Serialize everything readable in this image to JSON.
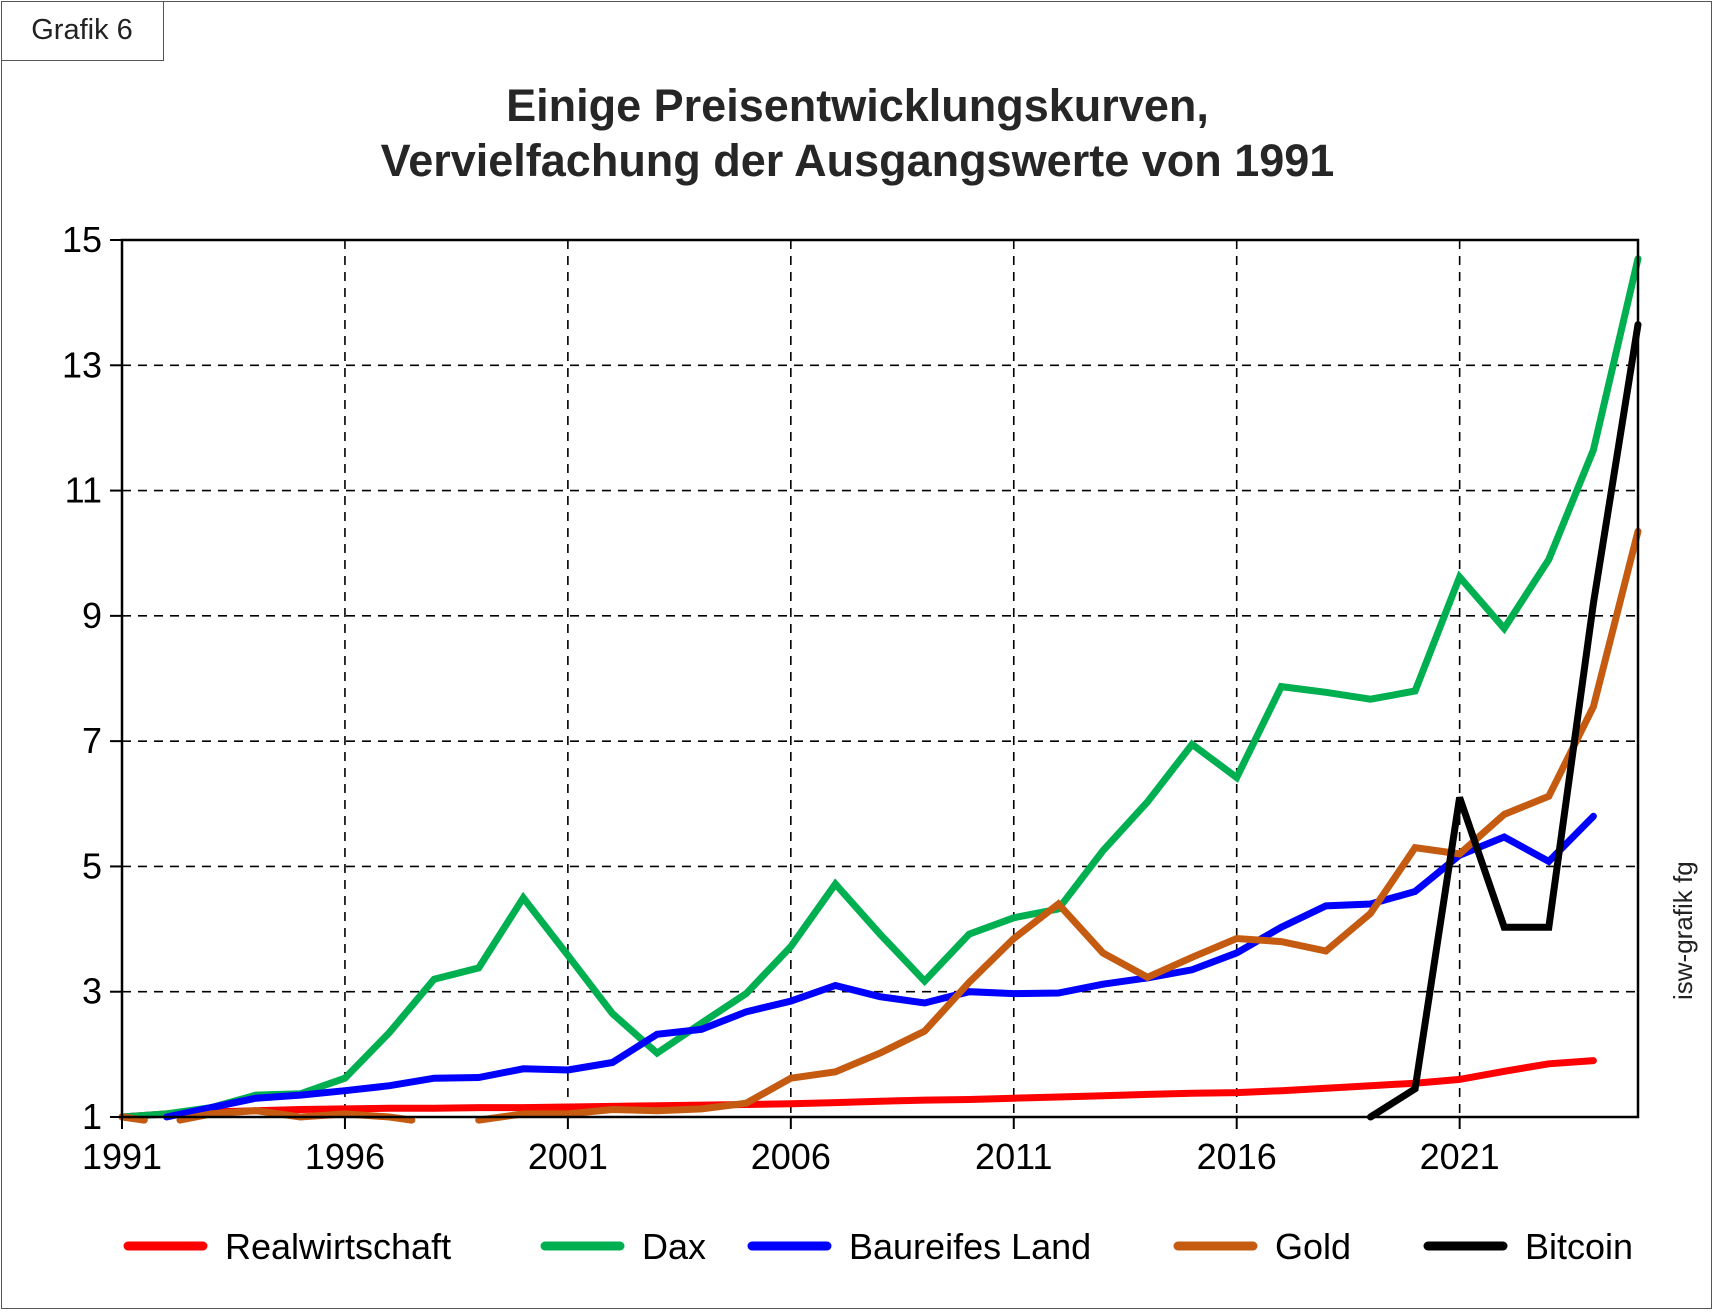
{
  "badge": "Grafik 6",
  "watermark": "isw-grafik fg",
  "chart_data": {
    "type": "line",
    "title": "Einige Preisentwicklungskurven,",
    "subtitle": "Vervielfachung der Ausgangswerte von 1991",
    "xlabel": "",
    "ylabel": "",
    "xlim": [
      1991,
      2025
    ],
    "ylim": [
      1,
      15
    ],
    "xticks": [
      1991,
      1996,
      2001,
      2006,
      2011,
      2016,
      2021
    ],
    "yticks": [
      1,
      3,
      5,
      7,
      9,
      11,
      13,
      15
    ],
    "grid": true,
    "legend_position": "bottom",
    "series": [
      {
        "name": "Realwirtschaft",
        "color": "#ff0000",
        "segments": [
          [
            [
              1991,
              1.0
            ],
            [
              1992,
              1.05
            ],
            [
              1993,
              1.08
            ],
            [
              1994,
              1.1
            ],
            [
              1995,
              1.12
            ],
            [
              1996,
              1.13
            ],
            [
              1997,
              1.14
            ],
            [
              1998,
              1.14
            ],
            [
              1999,
              1.15
            ],
            [
              2000,
              1.15
            ],
            [
              2001,
              1.16
            ],
            [
              2002,
              1.17
            ],
            [
              2003,
              1.18
            ],
            [
              2004,
              1.19
            ],
            [
              2005,
              1.2
            ],
            [
              2006,
              1.21
            ],
            [
              2007,
              1.23
            ],
            [
              2008,
              1.25
            ],
            [
              2009,
              1.27
            ],
            [
              2010,
              1.28
            ],
            [
              2011,
              1.3
            ],
            [
              2012,
              1.32
            ],
            [
              2013,
              1.34
            ],
            [
              2014,
              1.36
            ],
            [
              2015,
              1.38
            ],
            [
              2016,
              1.39
            ],
            [
              2017,
              1.42
            ],
            [
              2018,
              1.46
            ],
            [
              2019,
              1.5
            ],
            [
              2020,
              1.54
            ],
            [
              2021,
              1.6
            ],
            [
              2022,
              1.73
            ],
            [
              2023,
              1.85
            ],
            [
              2024,
              1.9
            ]
          ]
        ]
      },
      {
        "name": "Dax",
        "color": "#00b050",
        "segments": [
          [
            [
              1991,
              1.0
            ],
            [
              1992,
              1.05
            ],
            [
              1993,
              1.15
            ],
            [
              1994,
              1.35
            ],
            [
              1995,
              1.37
            ],
            [
              1996,
              1.62
            ],
            [
              1997,
              2.35
            ],
            [
              1998,
              3.2
            ],
            [
              1999,
              3.38
            ],
            [
              2000,
              4.5
            ],
            [
              2001,
              3.58
            ],
            [
              2002,
              2.65
            ],
            [
              2003,
              2.02
            ],
            [
              2004,
              2.5
            ],
            [
              2005,
              2.97
            ],
            [
              2006,
              3.72
            ],
            [
              2007,
              4.72
            ],
            [
              2008,
              3.92
            ],
            [
              2009,
              3.17
            ],
            [
              2010,
              3.92
            ],
            [
              2011,
              4.18
            ],
            [
              2012,
              4.32
            ],
            [
              2013,
              5.25
            ],
            [
              2014,
              6.03
            ],
            [
              2015,
              6.95
            ],
            [
              2016,
              6.42
            ],
            [
              2017,
              7.87
            ],
            [
              2018,
              7.78
            ],
            [
              2019,
              7.67
            ],
            [
              2020,
              7.8
            ],
            [
              2021,
              9.62
            ],
            [
              2022,
              8.8
            ],
            [
              2023,
              9.9
            ],
            [
              2024,
              11.65
            ],
            [
              2025,
              14.7
            ]
          ]
        ]
      },
      {
        "name": "Baureifes Land",
        "color": "#0000ff",
        "segments": [
          [
            [
              1992,
              1.0
            ],
            [
              1993,
              1.15
            ],
            [
              1994,
              1.3
            ],
            [
              1995,
              1.35
            ],
            [
              1996,
              1.42
            ],
            [
              1997,
              1.5
            ],
            [
              1998,
              1.62
            ],
            [
              1999,
              1.63
            ],
            [
              2000,
              1.77
            ],
            [
              2001,
              1.75
            ],
            [
              2002,
              1.87
            ],
            [
              2003,
              2.32
            ],
            [
              2004,
              2.4
            ],
            [
              2005,
              2.68
            ],
            [
              2006,
              2.85
            ],
            [
              2007,
              3.1
            ],
            [
              2008,
              2.92
            ],
            [
              2009,
              2.82
            ],
            [
              2010,
              3.0
            ],
            [
              2011,
              2.97
            ],
            [
              2012,
              2.98
            ],
            [
              2013,
              3.12
            ],
            [
              2014,
              3.22
            ],
            [
              2015,
              3.35
            ],
            [
              2016,
              3.62
            ],
            [
              2017,
              4.03
            ],
            [
              2018,
              4.37
            ],
            [
              2019,
              4.4
            ],
            [
              2020,
              4.6
            ],
            [
              2021,
              5.18
            ],
            [
              2022,
              5.47
            ],
            [
              2023,
              5.08
            ],
            [
              2024,
              5.8
            ]
          ]
        ]
      },
      {
        "name": "Gold",
        "color": "#c55a11",
        "segments": [
          [
            [
              1991,
              1.0
            ],
            [
              1991.5,
              0.95
            ]
          ],
          [
            [
              1992.3,
              0.95
            ],
            [
              1993,
              1.05
            ],
            [
              1994,
              1.1
            ],
            [
              1995,
              1.0
            ],
            [
              1996,
              1.05
            ],
            [
              1997,
              1.0
            ],
            [
              1997.5,
              0.95
            ]
          ],
          [
            [
              1999,
              0.95
            ],
            [
              2000,
              1.05
            ],
            [
              2001,
              1.05
            ],
            [
              2002,
              1.12
            ],
            [
              2003,
              1.1
            ],
            [
              2004,
              1.13
            ],
            [
              2005,
              1.22
            ],
            [
              2006,
              1.62
            ],
            [
              2007,
              1.72
            ],
            [
              2008,
              2.02
            ],
            [
              2009,
              2.37
            ],
            [
              2010,
              3.15
            ],
            [
              2011,
              3.85
            ],
            [
              2012,
              4.4
            ],
            [
              2013,
              3.62
            ],
            [
              2014,
              3.23
            ],
            [
              2015,
              3.55
            ],
            [
              2016,
              3.85
            ],
            [
              2017,
              3.8
            ],
            [
              2018,
              3.65
            ],
            [
              2019,
              4.25
            ],
            [
              2020,
              5.3
            ],
            [
              2021,
              5.2
            ],
            [
              2022,
              5.83
            ],
            [
              2023,
              6.12
            ],
            [
              2024,
              7.55
            ],
            [
              2025,
              10.35
            ]
          ]
        ]
      },
      {
        "name": "Bitcoin",
        "color": "#000000",
        "segments": [
          [
            [
              2019,
              1.0
            ],
            [
              2020,
              1.45
            ],
            [
              2021,
              6.1
            ],
            [
              2022,
              4.03
            ],
            [
              2023,
              4.03
            ],
            [
              2024,
              9.2
            ],
            [
              2025,
              13.65
            ]
          ]
        ]
      }
    ]
  }
}
